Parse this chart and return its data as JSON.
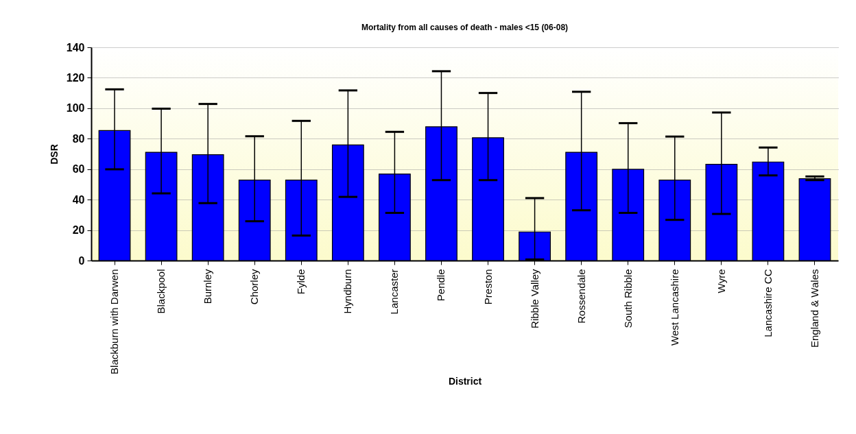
{
  "chart_data": {
    "type": "bar",
    "title": "Mortality from all causes of death - males <15 (06-08)",
    "xlabel": "District",
    "ylabel": "DSR",
    "categories": [
      "Blackburn with Darwen",
      "Blackpool",
      "Burnley",
      "Chorley",
      "Fylde",
      "Hyndburn",
      "Lancaster",
      "Pendle",
      "Preston",
      "Ribble Valley",
      "Rossendale",
      "South Ribble",
      "West Lancashire",
      "Wyre",
      "Lancashire CC",
      "England & Wales"
    ],
    "values": [
      85.4,
      71.1,
      69.5,
      52.8,
      52.8,
      75.9,
      56.8,
      87.8,
      80.6,
      18.8,
      71.1,
      59.9,
      52.8,
      63.2,
      64.7,
      53.7
    ],
    "errors": [
      [
        59.9,
        112.4
      ],
      [
        44.1,
        99.7
      ],
      [
        37.7,
        102.8
      ],
      [
        25.8,
        81.6
      ],
      [
        16.4,
        91.7
      ],
      [
        41.8,
        111.7
      ],
      [
        31.3,
        84.5
      ],
      [
        52.8,
        124.3
      ],
      [
        52.8,
        110
      ],
      [
        0.7,
        41
      ],
      [
        33,
        110.8
      ],
      [
        31.3,
        90.2
      ],
      [
        26.7,
        81.4
      ],
      [
        30.6,
        97.2
      ],
      [
        55.9,
        74.2
      ],
      [
        52.8,
        55.2
      ]
    ],
    "color": "#0000ff",
    "ylim": [
      0,
      140
    ],
    "yticks": [
      0,
      20,
      40,
      60,
      80,
      100,
      120,
      140
    ],
    "grid": "y"
  }
}
